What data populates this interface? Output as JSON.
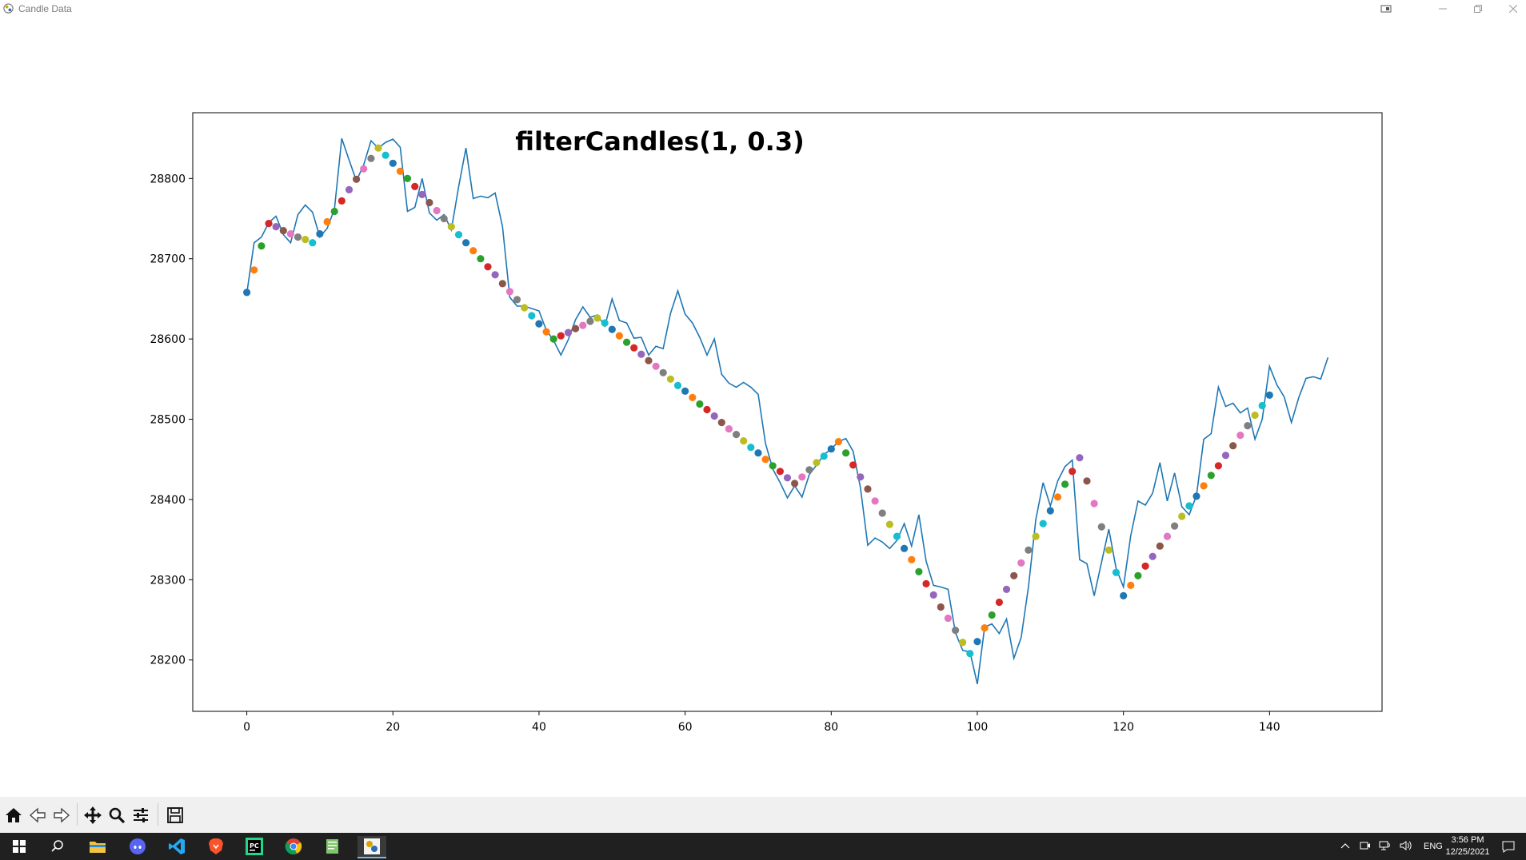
{
  "window": {
    "title": "Candle Data"
  },
  "taskbar": {
    "language": "ENG",
    "time": "3:56 PM",
    "date": "12/25/2021"
  },
  "colors": {
    "line": "#1f77b4",
    "marker_cycle": [
      "#1f77b4",
      "#ff7f0e",
      "#2ca02c",
      "#d62728",
      "#9467bd",
      "#8c564b",
      "#e377c2",
      "#7f7f7f",
      "#bcbd22",
      "#17becf"
    ]
  },
  "chart_data": {
    "type": "line",
    "title": "filterCandles(1, 0.3)",
    "xlabel": "",
    "ylabel": "",
    "xlim": [
      -7.4,
      155.4
    ],
    "ylim": [
      28136,
      28882
    ],
    "xticks": [
      0,
      20,
      40,
      60,
      80,
      100,
      120,
      140
    ],
    "yticks": [
      28200,
      28300,
      28400,
      28500,
      28600,
      28700,
      28800
    ],
    "grid": false,
    "series": [
      {
        "kind": "line",
        "values": [
          28657,
          28720,
          28727,
          28745,
          28753,
          28730,
          28720,
          28755,
          28767,
          28758,
          28727,
          28738,
          28762,
          28850,
          28823,
          28797,
          28817,
          28847,
          28838,
          28845,
          28849,
          28839,
          28759,
          28764,
          28800,
          28757,
          28748,
          28755,
          28736,
          28790,
          28838,
          28775,
          28778,
          28776,
          28782,
          28740,
          28652,
          28641,
          28641,
          28638,
          28635,
          28611,
          28598,
          28580,
          28599,
          28624,
          28640,
          28627,
          28630,
          28616,
          28650,
          28623,
          28620,
          28601,
          28602,
          28580,
          28591,
          28588,
          28632,
          28660,
          28631,
          28620,
          28602,
          28580,
          28600,
          28556,
          28545,
          28540,
          28546,
          28540,
          28531,
          28470,
          28438,
          28421,
          28402,
          28417,
          28403,
          28431,
          28443,
          28456,
          28463,
          28472,
          28476,
          28460,
          28415,
          28343,
          28352,
          28347,
          28339,
          28349,
          28370,
          28342,
          28381,
          28323,
          28293,
          28291,
          28288,
          28234,
          28212,
          28210,
          28170,
          28241,
          28245,
          28233,
          28251,
          28202,
          28228,
          28291,
          28375,
          28421,
          28392,
          28423,
          28441,
          28449,
          28325,
          28320,
          28280,
          28322,
          28363,
          28314,
          28291,
          28355,
          28398,
          28393,
          28408,
          28446,
          28398,
          28433,
          28391,
          28381,
          28405,
          28475,
          28482,
          28540,
          28516,
          28520,
          28508,
          28514,
          28475,
          28500,
          28566,
          28543,
          28528,
          28496,
          28527,
          28551,
          28553,
          28550,
          28577
        ]
      },
      {
        "kind": "markers",
        "points": [
          [
            0,
            28658
          ],
          [
            1,
            28686
          ],
          [
            2,
            28716
          ],
          [
            3,
            28744
          ],
          [
            4,
            28740
          ],
          [
            5,
            28735
          ],
          [
            6,
            28731
          ],
          [
            7,
            28727
          ],
          [
            8,
            28724
          ],
          [
            9,
            28720
          ],
          [
            10,
            28731
          ],
          [
            11,
            28746
          ],
          [
            12,
            28759
          ],
          [
            13,
            28772
          ],
          [
            14,
            28786
          ],
          [
            15,
            28799
          ],
          [
            16,
            28812
          ],
          [
            17,
            28825
          ],
          [
            18,
            28838
          ],
          [
            19,
            28829
          ],
          [
            20,
            28819
          ],
          [
            21,
            28809
          ],
          [
            22,
            28800
          ],
          [
            23,
            28790
          ],
          [
            24,
            28780
          ],
          [
            25,
            28770
          ],
          [
            26,
            28760
          ],
          [
            27,
            28750
          ],
          [
            28,
            28740
          ],
          [
            29,
            28730
          ],
          [
            30,
            28720
          ],
          [
            31,
            28710
          ],
          [
            32,
            28700
          ],
          [
            33,
            28690
          ],
          [
            34,
            28680
          ],
          [
            35,
            28669
          ],
          [
            36,
            28659
          ],
          [
            37,
            28649
          ],
          [
            38,
            28639
          ],
          [
            39,
            28629
          ],
          [
            40,
            28619
          ],
          [
            41,
            28609
          ],
          [
            42,
            28600
          ],
          [
            43,
            28604
          ],
          [
            44,
            28608
          ],
          [
            45,
            28613
          ],
          [
            46,
            28617
          ],
          [
            47,
            28622
          ],
          [
            48,
            28626
          ],
          [
            49,
            28620
          ],
          [
            50,
            28612
          ],
          [
            51,
            28604
          ],
          [
            52,
            28596
          ],
          [
            53,
            28589
          ],
          [
            54,
            28581
          ],
          [
            55,
            28573
          ],
          [
            56,
            28566
          ],
          [
            57,
            28558
          ],
          [
            58,
            28550
          ],
          [
            59,
            28542
          ],
          [
            60,
            28535
          ],
          [
            61,
            28527
          ],
          [
            62,
            28519
          ],
          [
            63,
            28512
          ],
          [
            64,
            28504
          ],
          [
            65,
            28496
          ],
          [
            66,
            28488
          ],
          [
            67,
            28481
          ],
          [
            68,
            28473
          ],
          [
            69,
            28465
          ],
          [
            70,
            28458
          ],
          [
            71,
            28450
          ],
          [
            72,
            28442
          ],
          [
            73,
            28435
          ],
          [
            74,
            28427
          ],
          [
            75,
            28420
          ],
          [
            76,
            28428
          ],
          [
            77,
            28437
          ],
          [
            78,
            28446
          ],
          [
            79,
            28454
          ],
          [
            80,
            28463
          ],
          [
            81,
            28472
          ],
          [
            82,
            28458
          ],
          [
            83,
            28443
          ],
          [
            84,
            28428
          ],
          [
            85,
            28413
          ],
          [
            86,
            28398
          ],
          [
            87,
            28383
          ],
          [
            88,
            28369
          ],
          [
            89,
            28354
          ],
          [
            90,
            28339
          ],
          [
            91,
            28325
          ],
          [
            92,
            28310
          ],
          [
            93,
            28295
          ],
          [
            94,
            28281
          ],
          [
            95,
            28266
          ],
          [
            96,
            28252
          ],
          [
            97,
            28237
          ],
          [
            98,
            28222
          ],
          [
            99,
            28208
          ],
          [
            100,
            28223
          ],
          [
            101,
            28240
          ],
          [
            102,
            28256
          ],
          [
            103,
            28272
          ],
          [
            104,
            28288
          ],
          [
            105,
            28305
          ],
          [
            106,
            28321
          ],
          [
            107,
            28337
          ],
          [
            108,
            28354
          ],
          [
            109,
            28370
          ],
          [
            110,
            28386
          ],
          [
            111,
            28403
          ],
          [
            112,
            28419
          ],
          [
            113,
            28435
          ],
          [
            114,
            28452
          ],
          [
            115,
            28423
          ],
          [
            116,
            28395
          ],
          [
            117,
            28366
          ],
          [
            118,
            28337
          ],
          [
            119,
            28309
          ],
          [
            120,
            28280
          ],
          [
            121,
            28293
          ],
          [
            122,
            28305
          ],
          [
            123,
            28317
          ],
          [
            124,
            28329
          ],
          [
            125,
            28342
          ],
          [
            126,
            28354
          ],
          [
            127,
            28367
          ],
          [
            128,
            28379
          ],
          [
            129,
            28392
          ],
          [
            130,
            28404
          ],
          [
            131,
            28417
          ],
          [
            132,
            28430
          ],
          [
            133,
            28442
          ],
          [
            134,
            28455
          ],
          [
            135,
            28467
          ],
          [
            136,
            28480
          ],
          [
            137,
            28492
          ],
          [
            138,
            28505
          ],
          [
            139,
            28517
          ],
          [
            140,
            28530
          ]
        ]
      }
    ]
  }
}
